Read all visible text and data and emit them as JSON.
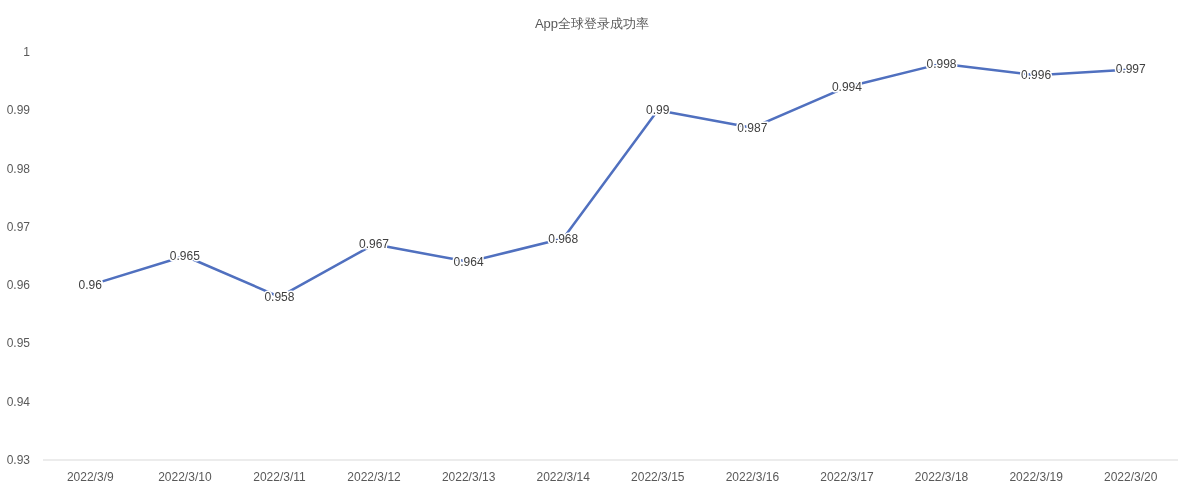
{
  "chart_data": {
    "type": "line",
    "title": "App全球登录成功率",
    "categories": [
      "2022/3/9",
      "2022/3/10",
      "2022/3/11",
      "2022/3/12",
      "2022/3/13",
      "2022/3/14",
      "2022/3/15",
      "2022/3/16",
      "2022/3/17",
      "2022/3/18",
      "2022/3/19",
      "2022/3/20"
    ],
    "series": [
      {
        "color": "#5070bf",
        "values": [
          0.96,
          0.965,
          0.958,
          0.967,
          0.964,
          0.968,
          0.99,
          0.987,
          0.994,
          0.998,
          0.996,
          0.997
        ]
      }
    ],
    "ylim": [
      0.93,
      1
    ],
    "yticks": [
      0.93,
      0.94,
      0.95,
      0.96,
      0.97,
      0.98,
      0.99,
      1
    ],
    "data_labels": true,
    "grid": false,
    "marker": "none",
    "line_style": "solid"
  }
}
